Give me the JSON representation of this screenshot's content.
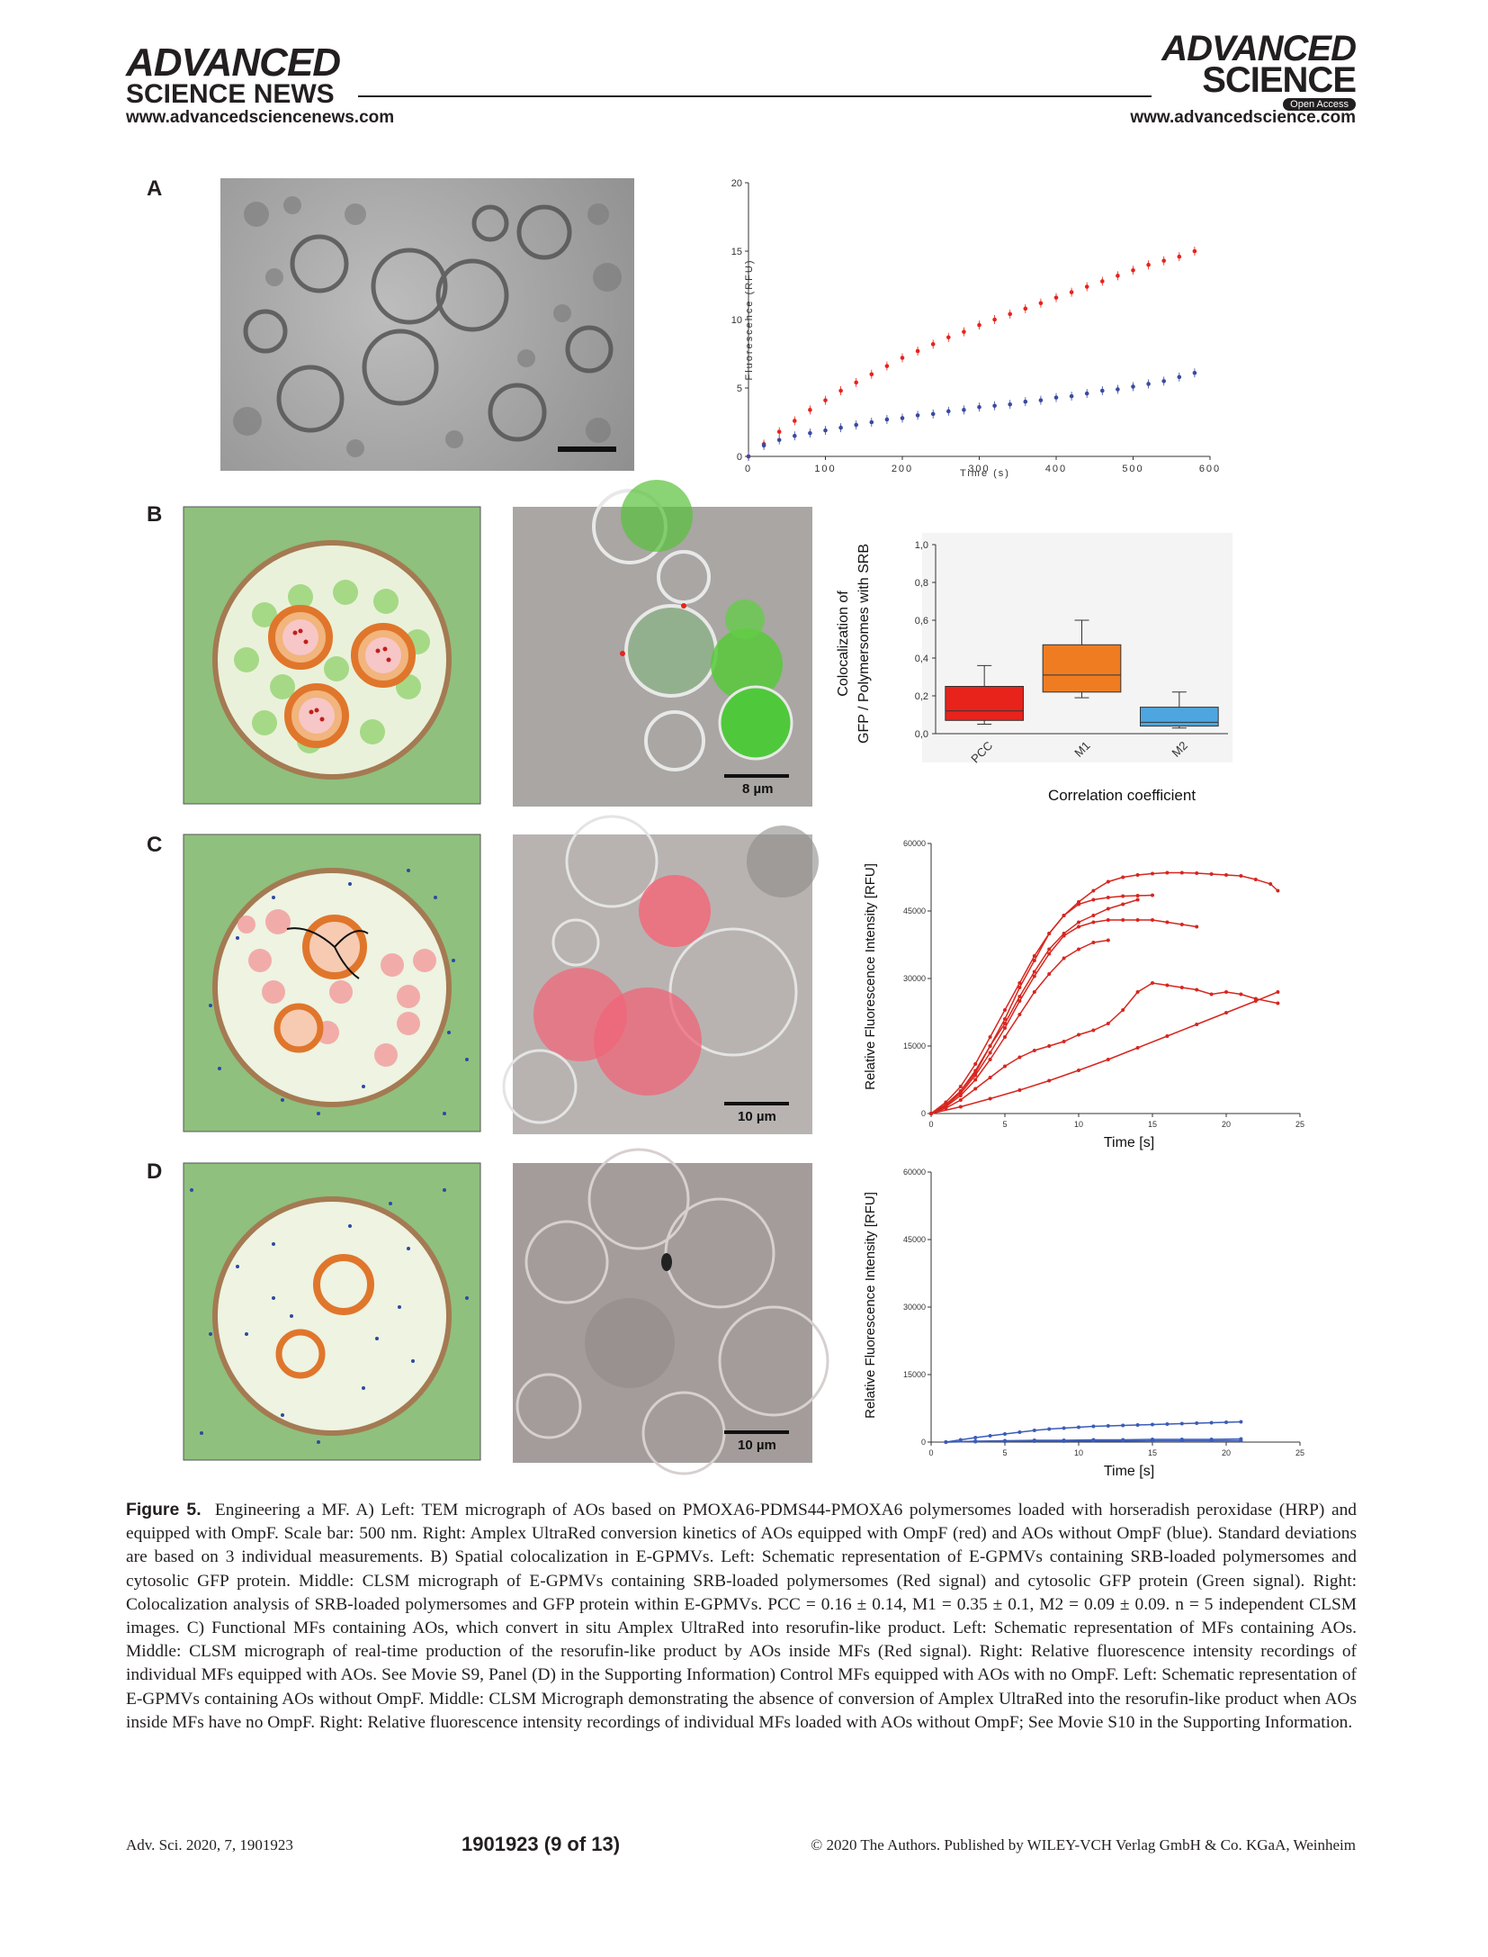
{
  "header": {
    "left_brand_1": "ADVANCED",
    "left_brand_2": "SCIENCE NEWS",
    "left_url": "www.advancedsciencenews.com",
    "right_brand_1": "ADVANCED",
    "right_brand_2": "SCIENCE",
    "open_access": "Open Access",
    "right_url": "www.advancedscience.com"
  },
  "panels": {
    "A": "A",
    "B": "B",
    "C": "C",
    "D": "D"
  },
  "scalebars": {
    "B": "8 µm",
    "C": "10 µm",
    "D": "10 µm"
  },
  "chart_data": [
    {
      "id": "A-kinetics",
      "type": "scatter",
      "xlabel": "Time (s)",
      "ylabel": "Fluorescence (RFU)",
      "xlim": [
        0,
        600
      ],
      "ylim": [
        0,
        20
      ],
      "xticks": [
        "0",
        "100",
        "200",
        "300",
        "400",
        "500",
        "600"
      ],
      "yticks": [
        "0",
        "5",
        "10",
        "15",
        "20"
      ],
      "series": [
        {
          "color": "#e8231c",
          "x": [
            0,
            20,
            40,
            60,
            80,
            100,
            120,
            140,
            160,
            180,
            200,
            220,
            240,
            260,
            280,
            300,
            320,
            340,
            360,
            380,
            400,
            420,
            440,
            460,
            480,
            500,
            520,
            540,
            560,
            580
          ],
          "y": [
            0,
            0.9,
            1.8,
            2.6,
            3.4,
            4.1,
            4.8,
            5.4,
            6.0,
            6.6,
            7.2,
            7.7,
            8.2,
            8.7,
            9.1,
            9.6,
            10.0,
            10.4,
            10.8,
            11.2,
            11.6,
            12.0,
            12.4,
            12.8,
            13.2,
            13.6,
            14.0,
            14.3,
            14.6,
            15.0
          ]
        },
        {
          "color": "#3b4aa0",
          "x": [
            0,
            20,
            40,
            60,
            80,
            100,
            120,
            140,
            160,
            180,
            200,
            220,
            240,
            260,
            280,
            300,
            320,
            340,
            360,
            380,
            400,
            420,
            440,
            460,
            480,
            500,
            520,
            540,
            560,
            580
          ],
          "y": [
            0,
            0.8,
            1.2,
            1.5,
            1.7,
            1.9,
            2.1,
            2.3,
            2.5,
            2.7,
            2.8,
            3.0,
            3.1,
            3.3,
            3.4,
            3.6,
            3.7,
            3.8,
            4.0,
            4.1,
            4.3,
            4.4,
            4.6,
            4.8,
            4.9,
            5.1,
            5.3,
            5.5,
            5.8,
            6.1
          ]
        }
      ]
    },
    {
      "id": "B-colocalization",
      "type": "bar",
      "xlabel": "Correlation coefficient",
      "ylabel_1": "Colocalization of",
      "ylabel_2": "GFP / Polymersomes with SRB",
      "ylim": [
        0,
        1.0
      ],
      "yticks": [
        "0,0",
        "0,2",
        "0,4",
        "0,6",
        "0,8",
        "1,0"
      ],
      "categories": [
        "PCC",
        "M1",
        "M2"
      ],
      "boxes": [
        {
          "min": 0.05,
          "q1": 0.07,
          "median": 0.12,
          "q3": 0.25,
          "max": 0.36,
          "color": "#e8231c"
        },
        {
          "min": 0.19,
          "q1": 0.22,
          "median": 0.31,
          "q3": 0.47,
          "max": 0.6,
          "color": "#f07c22"
        },
        {
          "min": 0.03,
          "q1": 0.04,
          "median": 0.06,
          "q3": 0.14,
          "max": 0.22,
          "color": "#4da6e0"
        }
      ]
    },
    {
      "id": "C-intensity",
      "type": "line",
      "xlabel": "Time [s]",
      "ylabel": "Relative Fluorescence Intensity [RFU]",
      "xlim": [
        0,
        25
      ],
      "ylim": [
        0,
        60000
      ],
      "xticks": [
        "0",
        "5",
        "10",
        "15",
        "20",
        "25"
      ],
      "yticks": [
        "0",
        "15000",
        "30000",
        "45000",
        "60000"
      ],
      "series": [
        {
          "color": "#d7261e",
          "x": [
            0,
            1,
            2,
            3,
            4,
            5,
            6,
            7,
            8,
            9,
            10,
            11,
            12,
            13,
            14,
            15,
            16,
            17,
            18,
            19,
            20,
            21,
            22,
            23,
            23.5
          ],
          "y": [
            0,
            2000,
            5000,
            9000,
            15000,
            21000,
            28000,
            34000,
            40000,
            44000,
            47000,
            49500,
            51500,
            52500,
            53000,
            53300,
            53500,
            53500,
            53400,
            53200,
            53000,
            52800,
            52000,
            51000,
            49500
          ]
        },
        {
          "color": "#d7261e",
          "x": [
            0,
            1,
            2,
            3,
            4,
            5,
            6,
            7,
            8,
            9,
            10,
            11,
            12,
            13,
            14,
            15
          ],
          "y": [
            0,
            2500,
            6000,
            11000,
            17000,
            23000,
            29000,
            35000,
            40000,
            44000,
            46500,
            47500,
            48000,
            48300,
            48400,
            48500
          ]
        },
        {
          "color": "#d7261e",
          "x": [
            0,
            1,
            2,
            3,
            4,
            5,
            6,
            7,
            8,
            9,
            10,
            11,
            12,
            13,
            14
          ],
          "y": [
            0,
            2000,
            5000,
            9500,
            15000,
            20000,
            26000,
            31500,
            36500,
            40000,
            42500,
            44000,
            45500,
            46500,
            47500
          ]
        },
        {
          "color": "#d7261e",
          "x": [
            0,
            1,
            2,
            3,
            4,
            5,
            6,
            7,
            8,
            9,
            10,
            11,
            12,
            13,
            14,
            15,
            16,
            17,
            18
          ],
          "y": [
            0,
            1800,
            4500,
            8500,
            13500,
            19000,
            25000,
            30500,
            35500,
            39500,
            41500,
            42500,
            43000,
            43000,
            43000,
            43000,
            42500,
            42000,
            41500
          ]
        },
        {
          "color": "#d7261e",
          "x": [
            0,
            1,
            2,
            3,
            4,
            5,
            6,
            7,
            8,
            9,
            10,
            11,
            12
          ],
          "y": [
            0,
            1500,
            4000,
            7500,
            12000,
            17000,
            22000,
            27000,
            31000,
            34500,
            36500,
            38000,
            38500
          ]
        },
        {
          "color": "#d7261e",
          "x": [
            0,
            1,
            2,
            3,
            4,
            5,
            6,
            7,
            8,
            9,
            10,
            11,
            12,
            13,
            14,
            15,
            16,
            17,
            18,
            19,
            20,
            21,
            22,
            23.5
          ],
          "y": [
            0,
            1200,
            3000,
            5500,
            8000,
            10500,
            12500,
            14000,
            15000,
            16000,
            17500,
            18500,
            20000,
            23000,
            27000,
            29000,
            28500,
            28000,
            27500,
            26500,
            27000,
            26500,
            25500,
            24500
          ]
        },
        {
          "color": "#d7261e",
          "x": [
            0,
            2,
            4,
            6,
            8,
            10,
            12,
            14,
            16,
            18,
            20,
            22,
            23.5
          ],
          "y": [
            0,
            1500,
            3300,
            5200,
            7300,
            9600,
            12000,
            14600,
            17200,
            19800,
            22400,
            25000,
            27000
          ]
        }
      ]
    },
    {
      "id": "D-intensity",
      "type": "line",
      "xlabel": "Time [s]",
      "ylabel": "Relative Fluorescence Intensity [RFU]",
      "xlim": [
        0,
        25
      ],
      "ylim": [
        0,
        60000
      ],
      "xticks": [
        "0",
        "5",
        "10",
        "15",
        "20",
        "25"
      ],
      "yticks": [
        "0",
        "15000",
        "30000",
        "45000",
        "60000"
      ],
      "series": [
        {
          "color": "#3b5cb8",
          "x": [
            1,
            2,
            3,
            4,
            5,
            6,
            7,
            8,
            9,
            10,
            11,
            12,
            13,
            14,
            15,
            16,
            17,
            18,
            19,
            20,
            21
          ],
          "y": [
            0,
            500,
            1000,
            1400,
            1800,
            2200,
            2600,
            2900,
            3100,
            3300,
            3500,
            3600,
            3700,
            3800,
            3900,
            4000,
            4100,
            4200,
            4300,
            4400,
            4500
          ]
        },
        {
          "color": "#3b5cb8",
          "x": [
            1,
            3,
            5,
            7,
            9,
            11,
            13,
            15,
            17,
            19,
            21
          ],
          "y": [
            0,
            200,
            300,
            400,
            400,
            500,
            500,
            600,
            600,
            600,
            700
          ]
        },
        {
          "color": "#3b5cb8",
          "x": [
            1,
            3,
            5,
            7,
            9,
            11,
            13,
            15,
            17,
            19,
            21
          ],
          "y": [
            0,
            100,
            150,
            200,
            200,
            250,
            250,
            300,
            300,
            300,
            300
          ]
        }
      ]
    }
  ],
  "caption": {
    "label": "Figure 5.",
    "text": "Engineering a MF. A) Left: TEM micrograph of AOs based on PMOXA6-PDMS44-PMOXA6 polymersomes loaded with horseradish peroxidase (HRP) and equipped with OmpF. Scale bar: 500 nm. Right: Amplex UltraRed conversion kinetics of AOs equipped with OmpF (red) and AOs without OmpF (blue). Standard deviations are based on 3 individual measurements. B) Spatial colocalization in E-GPMVs. Left: Schematic representation of E-GPMVs containing SRB-loaded polymersomes and cytosolic GFP protein. Middle: CLSM micrograph of E-GPMVs containing SRB-loaded polymersomes (Red signal) and cytosolic GFP protein (Green signal). Right: Colocalization analysis of SRB-loaded polymersomes and GFP protein within E-GPMVs. PCC = 0.16 ± 0.14, M1 = 0.35 ± 0.1, M2 = 0.09 ± 0.09. n = 5 independent CLSM images. C) Functional MFs containing AOs, which convert in situ Amplex UltraRed into resorufin-like product. Left: Schematic representation of MFs containing AOs. Middle: CLSM micrograph of real-time production of the resorufin-like product by AOs inside MFs (Red signal). Right: Relative fluorescence intensity recordings of individual MFs equipped with AOs. See Movie S9, Panel (D) in the Supporting Information) Control MFs equipped with AOs with no OmpF. Left: Schematic representation of E-GPMVs containing AOs without OmpF. Middle: CLSM Micrograph demonstrating the absence of conversion of Amplex UltraRed into the resorufin-like product when AOs inside MFs have no OmpF. Right: Relative fluorescence intensity recordings of individual MFs loaded with AOs without OmpF; See Movie S10 in the Supporting Information."
  },
  "footer": {
    "journal": "Adv. Sci. 2020, 7, 1901923",
    "page": "1901923  (9 of 13)",
    "copyright": "© 2020 The Authors. Published by WILEY-VCH Verlag GmbH & Co. KGaA, Weinheim"
  },
  "colors": {
    "schematic_bg": "#8fc07e",
    "schematic_cell": "#eef3e2",
    "membrane": "#a47a52",
    "red": "#e8231c",
    "blue": "#3b4aa0"
  }
}
